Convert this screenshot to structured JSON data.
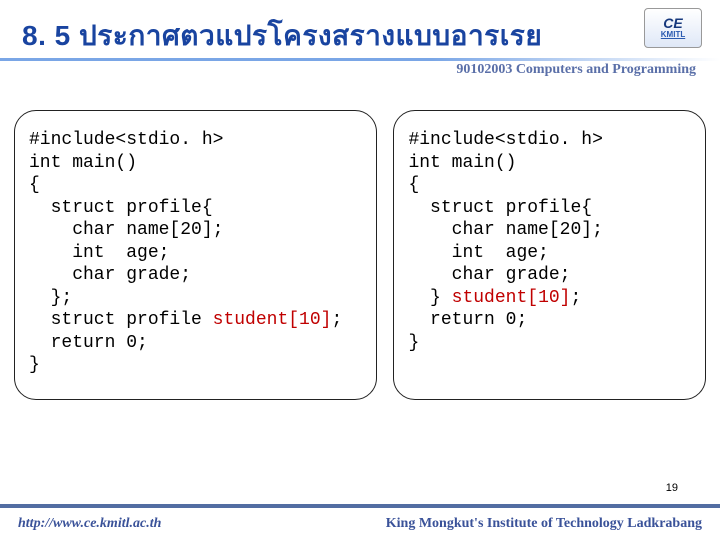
{
  "title": "8. 5 ประกาศตวแปรโครงสรางแบบอารเรย",
  "logo": {
    "main": "CE",
    "sub": "KMITL"
  },
  "course": "90102003 Computers and Programming",
  "code_left": {
    "lines": [
      {
        "pre": "#include<stdio. h>"
      },
      {
        "pre": "int main()"
      },
      {
        "pre": "{"
      },
      {
        "pre": "  struct profile{"
      },
      {
        "pre": "    char name[20];"
      },
      {
        "pre": "    int  age;"
      },
      {
        "pre": "    char grade;"
      },
      {
        "pre": "  };"
      },
      {
        "pre": "  struct profile ",
        "hl": "student[10]",
        "post": ";"
      },
      {
        "pre": "  return 0;"
      },
      {
        "pre": "}"
      }
    ]
  },
  "code_right": {
    "lines": [
      {
        "pre": "#include<stdio. h>"
      },
      {
        "pre": "int main()"
      },
      {
        "pre": "{"
      },
      {
        "pre": "  struct profile{"
      },
      {
        "pre": "    char name[20];"
      },
      {
        "pre": "    int  age;"
      },
      {
        "pre": "    char grade;"
      },
      {
        "pre": "  } ",
        "hl": "student[10]",
        "post": ";"
      },
      {
        "pre": "  return 0;"
      },
      {
        "pre": "}"
      }
    ]
  },
  "page_number": "19",
  "footer": {
    "url": "http://www.ce.kmitl.ac.th",
    "org": "King Mongkut's Institute of Technology Ladkrabang"
  },
  "colors": {
    "title": "#1944a0",
    "highlight": "#c00000",
    "footer_text": "#3a5299",
    "divider": "#7aa6e6",
    "footer_border": "#526da2"
  }
}
